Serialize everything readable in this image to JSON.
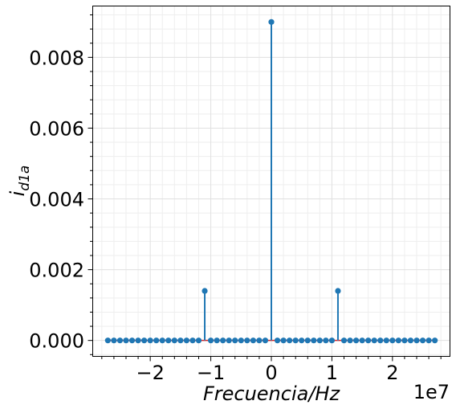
{
  "chart_data": {
    "type": "stem",
    "title": "",
    "xlabel": "Frecuencia/Hz",
    "ylabel_main": "i",
    "ylabel_sub": "d1a",
    "x_offset_label": "1e7",
    "xlim": [
      -2.95,
      2.95
    ],
    "ylim": [
      -0.00045,
      0.00945
    ],
    "x_unit_scale": 10000000,
    "x_ticks": [
      -2,
      -1,
      0,
      1,
      2
    ],
    "x_tick_labels": [
      "−2",
      "−1",
      "0",
      "1",
      "2"
    ],
    "y_ticks": [
      0,
      0.002,
      0.004,
      0.006,
      0.008
    ],
    "y_tick_labels": [
      "0.000",
      "0.002",
      "0.004",
      "0.006",
      "0.008"
    ],
    "grid": true,
    "minor_grid": true,
    "stem_color": "#1f77b4",
    "baseline_color": "#d62728",
    "x_start": -2.7,
    "x_step": 0.1,
    "x_count": 55,
    "peaks": [
      {
        "x": -1.1,
        "y": 0.0014
      },
      {
        "x": 0.0,
        "y": 0.009
      },
      {
        "x": 1.1,
        "y": 0.0014
      }
    ]
  }
}
